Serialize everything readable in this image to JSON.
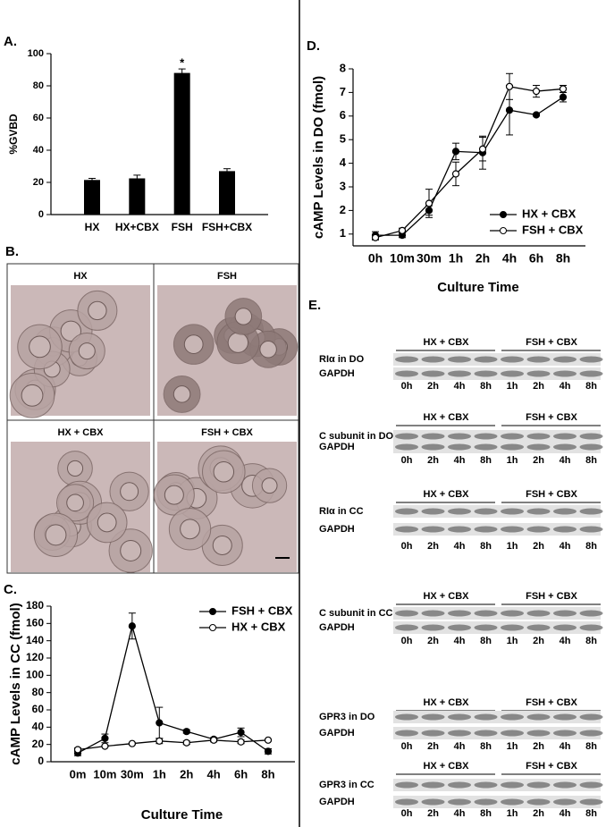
{
  "panel_labels": [
    "A.",
    "B.",
    "C.",
    "D.",
    "E."
  ],
  "chart_data": [
    {
      "type": "bar",
      "ylabel": "%GVBD",
      "categories": [
        "HX",
        "HX+CBX",
        "FSH",
        "FSH+CBX"
      ],
      "values": [
        21.5,
        22.5,
        88,
        27
      ],
      "errors": [
        1,
        2,
        2.5,
        1.5
      ],
      "color": "#000000",
      "ylim": [
        0,
        100
      ],
      "yticks": [
        0,
        20,
        40,
        60,
        80,
        100
      ],
      "annotations": [
        {
          "text": "*",
          "x": "FSH"
        }
      ]
    },
    {
      "type": "line",
      "xlabel": "Culture Time",
      "ylabel": "cAMP Levels in CC (fmol)",
      "categories": [
        "0m",
        "10m",
        "30m",
        "1h",
        "2h",
        "4h",
        "6h",
        "8h"
      ],
      "series": [
        {
          "name": "FSH + CBX",
          "color": "#000000",
          "marker": "filled",
          "values": [
            10,
            27,
            157,
            45,
            35,
            26,
            34,
            12
          ],
          "errors": [
            3,
            5,
            15,
            18,
            2,
            2,
            5,
            3
          ]
        },
        {
          "name": "HX + CBX",
          "color": "#000000",
          "marker": "open",
          "values": [
            14,
            18,
            21,
            24,
            22,
            25,
            23,
            25
          ],
          "errors": [
            2,
            1,
            1,
            3,
            2,
            2,
            2,
            1
          ]
        }
      ],
      "ylim": [
        0,
        180
      ],
      "yticks": [
        0,
        20,
        40,
        60,
        80,
        100,
        120,
        140,
        160,
        180
      ],
      "legend": "upper right"
    },
    {
      "type": "line",
      "xlabel": "Culture Time",
      "ylabel": "cAMP Levels in DO (fmol)",
      "categories": [
        "0h",
        "10m",
        "30m",
        "1h",
        "2h",
        "4h",
        "6h",
        "8h"
      ],
      "series": [
        {
          "name": "HX + CBX",
          "color": "#000000",
          "marker": "filled",
          "values": [
            0.95,
            0.95,
            2.0,
            4.5,
            4.45,
            6.25,
            6.05,
            6.8
          ],
          "errors": [
            0.15,
            0.1,
            0.2,
            0.35,
            0.7,
            1.05,
            0.05,
            0.2
          ]
        },
        {
          "name": "FSH + CBX",
          "color": "#000000",
          "marker": "open",
          "values": [
            0.85,
            1.15,
            2.3,
            3.55,
            4.6,
            7.25,
            7.05,
            7.15
          ],
          "errors": [
            0.1,
            0.1,
            0.6,
            0.5,
            0.5,
            0.55,
            0.25,
            0.15
          ]
        }
      ],
      "ylim": [
        0.5,
        8
      ],
      "yticks": [
        1,
        2,
        3,
        4,
        5,
        6,
        7,
        8
      ],
      "legend": "lower right"
    }
  ],
  "micrographs": [
    "HX",
    "FSH",
    "HX + CBX",
    "FSH + CBX"
  ],
  "blots": [
    {
      "protein": "RIα in DO",
      "control": "GAPDH",
      "groups": [
        "HX + CBX",
        "FSH + CBX"
      ],
      "lanes": [
        "0h",
        "2h",
        "4h",
        "8h",
        "1h",
        "2h",
        "4h",
        "8h"
      ]
    },
    {
      "protein": "C subunit in DO",
      "control": "GAPDH",
      "groups": [
        "HX + CBX",
        "FSH + CBX"
      ],
      "lanes": [
        "0h",
        "2h",
        "4h",
        "8h",
        "1h",
        "2h",
        "4h",
        "8h"
      ]
    },
    {
      "protein": "RIα in CC",
      "control": "GAPDH",
      "groups": [
        "HX + CBX",
        "FSH + CBX"
      ],
      "lanes": [
        "0h",
        "2h",
        "4h",
        "8h",
        "1h",
        "2h",
        "4h",
        "8h"
      ]
    },
    {
      "protein": "C subunit in CC",
      "control": "GAPDH",
      "groups": [
        "HX + CBX",
        "FSH + CBX"
      ],
      "lanes": [
        "0h",
        "2h",
        "4h",
        "8h",
        "1h",
        "2h",
        "4h",
        "8h"
      ]
    },
    {
      "protein": "GPR3 in DO",
      "control": "GAPDH",
      "groups": [
        "HX + CBX",
        "FSH + CBX"
      ],
      "lanes": [
        "0h",
        "2h",
        "4h",
        "8h",
        "1h",
        "2h",
        "4h",
        "8h"
      ]
    },
    {
      "protein": "GPR3 in CC",
      "control": "GAPDH",
      "groups": [
        "HX + CBX",
        "FSH + CBX"
      ],
      "lanes": [
        "0h",
        "2h",
        "4h",
        "8h",
        "1h",
        "2h",
        "4h",
        "8h"
      ]
    }
  ]
}
